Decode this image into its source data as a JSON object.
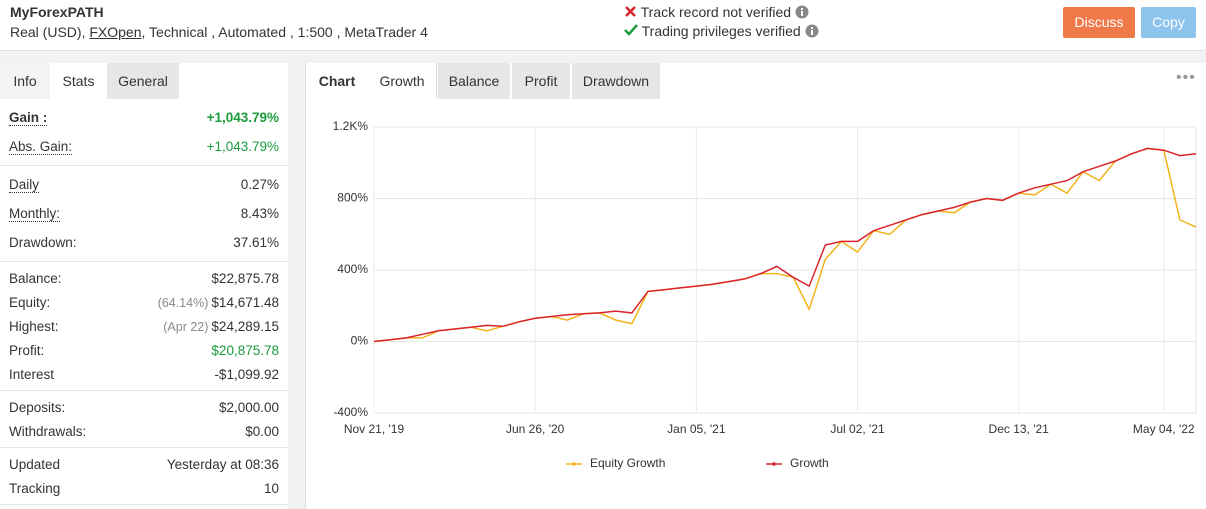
{
  "header": {
    "title": "MyForexPATH",
    "account": "Real (USD),",
    "broker": "FXOpen",
    "details": ", Technical , Automated , 1:500 , MetaTrader 4",
    "status": [
      "Track record not verified",
      "Trading privileges verified"
    ],
    "buttons": [
      "Discuss",
      "Copy"
    ]
  },
  "left_tabs": [
    "Info",
    "Stats",
    "General"
  ],
  "stats": [
    [
      {
        "label": "Gain :",
        "value": "+1,043.79%",
        "underline": true,
        "value_color": "#1a9c3e",
        "bold": true
      },
      {
        "label": "Abs. Gain:",
        "value": "+1,043.79%",
        "underline": true,
        "value_color": "#1a9c3e"
      }
    ],
    [
      {
        "label": "Daily",
        "value": "0.27%",
        "underline": true
      },
      {
        "label": "Monthly:",
        "value": "8.43%",
        "underline": true
      },
      {
        "label": "Drawdown:",
        "value": "37.61%"
      }
    ],
    [
      {
        "label": "Balance:",
        "value": "$22,875.78"
      },
      {
        "label": "Equity:",
        "note": "(64.14%)",
        "value": "$14,671.48"
      },
      {
        "label": "Highest:",
        "note": "(Apr 22)",
        "value": "$24,289.15"
      },
      {
        "label": "Profit:",
        "value": "$20,875.78",
        "value_color": "#1a9c3e"
      },
      {
        "label": "Interest",
        "value": "-$1,099.92"
      }
    ],
    [
      {
        "label": "Deposits:",
        "value": "$2,000.00"
      },
      {
        "label": "Withdrawals:",
        "value": "$0.00"
      }
    ],
    [
      {
        "label": "Updated",
        "value": "Yesterday at 08:36"
      },
      {
        "label": "Tracking",
        "value": "10"
      }
    ]
  ],
  "chart_tabs": [
    "Chart",
    "Growth",
    "Balance",
    "Profit",
    "Drawdown"
  ],
  "chart_data": {
    "type": "line",
    "categories": [
      "Nov 21, '19",
      null,
      null,
      null,
      null,
      null,
      null,
      null,
      null,
      null,
      "Jun 26, '20",
      null,
      null,
      null,
      null,
      null,
      null,
      null,
      null,
      null,
      "Jan 05, '21",
      null,
      null,
      null,
      null,
      null,
      null,
      null,
      null,
      null,
      "Jul 02, '21",
      null,
      null,
      null,
      null,
      null,
      null,
      null,
      null,
      null,
      "Dec 13, '21",
      null,
      null,
      null,
      null,
      null,
      null,
      null,
      null,
      "May 04, '22",
      null,
      null
    ],
    "series": [
      {
        "name": "Equity Growth",
        "color": "#f2b31a",
        "values": [
          0,
          10,
          20,
          20,
          60,
          70,
          80,
          60,
          85,
          110,
          130,
          140,
          120,
          155,
          160,
          120,
          100,
          280,
          290,
          300,
          310,
          320,
          335,
          350,
          380,
          380,
          360,
          180,
          460,
          560,
          500,
          620,
          600,
          680,
          710,
          730,
          720,
          780,
          800,
          790,
          830,
          820,
          880,
          830,
          950,
          900,
          1010,
          1050,
          1080,
          1070,
          680,
          640
        ]
      },
      {
        "name": "Growth",
        "color": "#d9232d",
        "values": [
          0,
          10,
          20,
          40,
          60,
          70,
          80,
          90,
          85,
          110,
          130,
          140,
          150,
          155,
          160,
          170,
          160,
          280,
          290,
          300,
          310,
          320,
          335,
          350,
          380,
          420,
          360,
          310,
          540,
          560,
          560,
          620,
          650,
          680,
          710,
          730,
          750,
          780,
          800,
          790,
          830,
          860,
          880,
          900,
          950,
          980,
          1010,
          1050,
          1080,
          1070,
          1040,
          1050
        ]
      }
    ],
    "ylim": [
      -400,
      1200
    ],
    "yticks": [
      {
        "value": -400,
        "label": "-400%"
      },
      {
        "value": 0,
        "label": "0%"
      },
      {
        "value": 400,
        "label": "400%"
      },
      {
        "value": 800,
        "label": "800%"
      },
      {
        "value": 1200,
        "label": "1.2K%"
      }
    ],
    "grid": true
  }
}
